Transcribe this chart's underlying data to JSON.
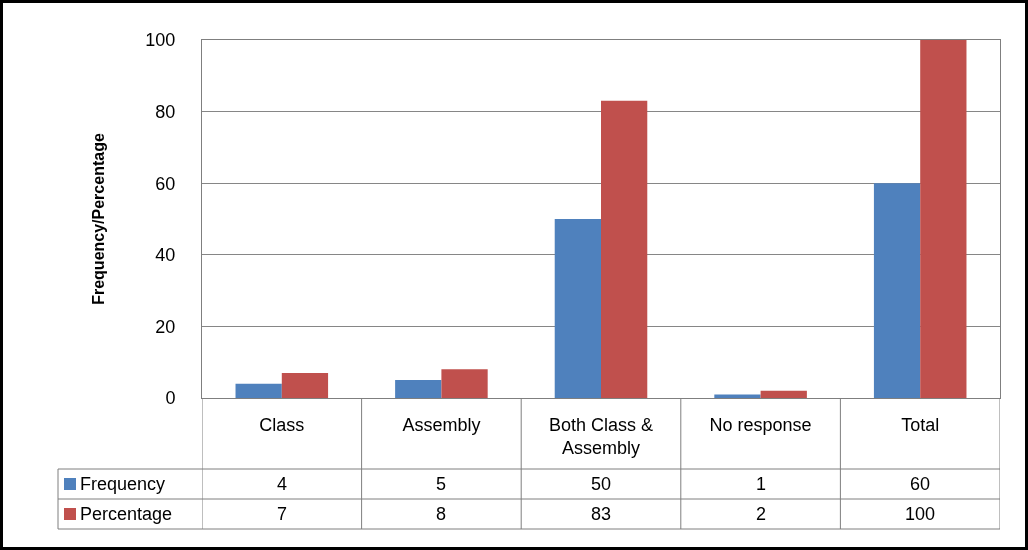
{
  "chart_data": {
    "type": "bar",
    "ylabel": "Frequency/Percentage",
    "categories": [
      "Class",
      "Assembly",
      "Both Class & Assembly",
      "No response",
      "Total"
    ],
    "series": [
      {
        "name": "Frequency",
        "color": "#4f81bd",
        "values": [
          4,
          5,
          50,
          1,
          60
        ]
      },
      {
        "name": "Percentage",
        "color": "#c0504d",
        "values": [
          7,
          8,
          83,
          2,
          100
        ]
      }
    ],
    "ylim": [
      0,
      100
    ],
    "yticks": [
      0,
      20,
      40,
      60,
      80,
      100
    ],
    "grid": "y",
    "legend": "bottom left",
    "data_labels": true
  }
}
